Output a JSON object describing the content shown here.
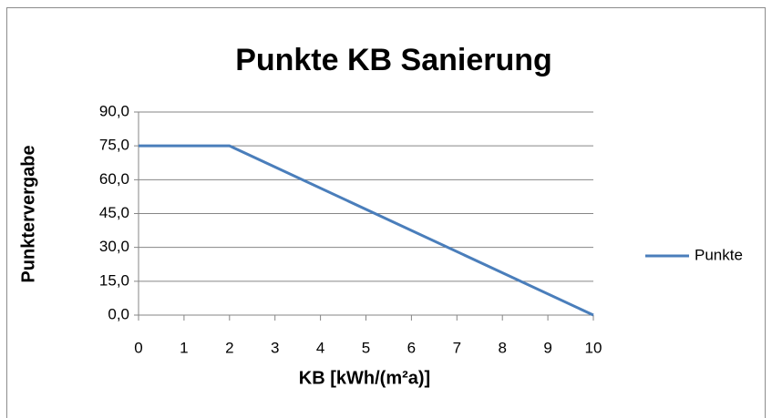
{
  "chart_data": {
    "type": "line",
    "title": "Punkte KB Sanierung",
    "x_label": "KB [kWh/(m²a)]",
    "y_label": "Punktervergabe",
    "x": [
      0,
      2,
      10
    ],
    "series": [
      {
        "name": "Punkte",
        "color": "#4a7ebb",
        "values": [
          75,
          75,
          0
        ]
      }
    ],
    "xlim": [
      0,
      10
    ],
    "xticks": [
      0,
      1,
      2,
      3,
      4,
      5,
      6,
      7,
      8,
      9,
      10
    ],
    "ylim": [
      0,
      90
    ],
    "yticks": [
      {
        "value": 0,
        "label": "0,0"
      },
      {
        "value": 15,
        "label": "15,0"
      },
      {
        "value": 30,
        "label": "30,0"
      },
      {
        "value": 45,
        "label": "45,0"
      },
      {
        "value": 60,
        "label": "60,0"
      },
      {
        "value": 75,
        "label": "75,0"
      },
      {
        "value": 90,
        "label": "90,0"
      }
    ],
    "grid": true,
    "legend": "right"
  }
}
